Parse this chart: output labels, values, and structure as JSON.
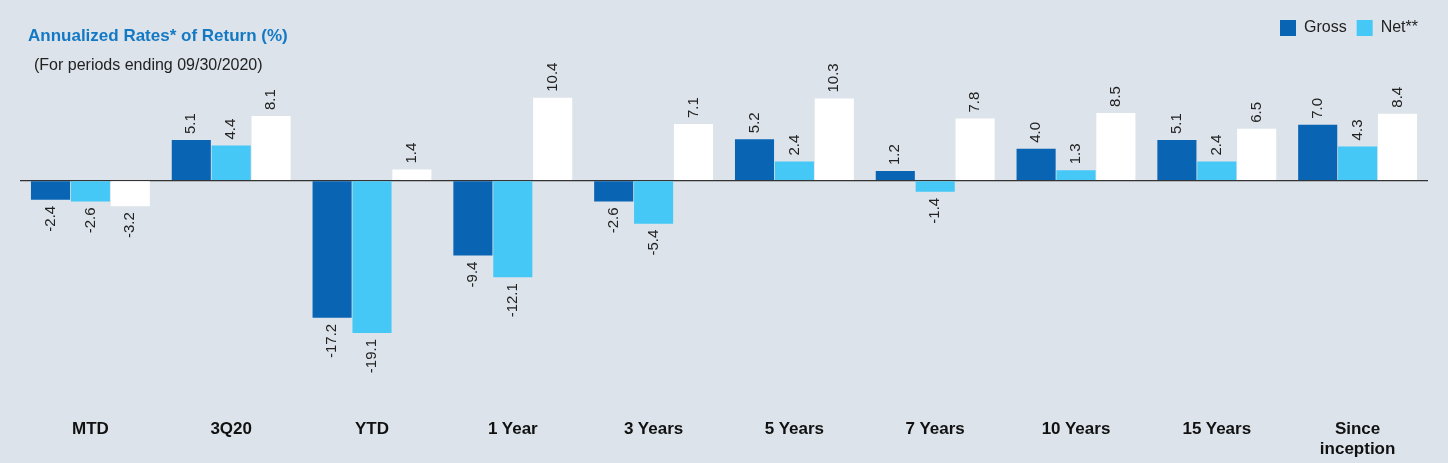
{
  "chart_data": {
    "type": "bar",
    "title": "Annualized Rates* of Return (%)",
    "subtitle": "(For periods ending 09/30/2020)",
    "categories": [
      "MTD",
      "3Q20",
      "YTD",
      "1 Year",
      "3 Years",
      "5 Years",
      "7 Years",
      "10 Years",
      "15 Years",
      "Since inception"
    ],
    "series": [
      {
        "name": "Gross",
        "color": "#0a64b4",
        "values": [
          -2.4,
          5.1,
          -17.2,
          -9.4,
          -2.6,
          5.2,
          1.2,
          4.0,
          5.1,
          7.0
        ],
        "value_labels": [
          "-2.4",
          "5.1",
          "-17.2",
          "-9.4",
          "-2.6",
          "5.2",
          "1.2",
          "4.0",
          "5.1",
          "7.0"
        ]
      },
      {
        "name": "Net**",
        "color": "#45c8f5",
        "values": [
          -2.6,
          4.4,
          -19.1,
          -12.1,
          -5.4,
          2.4,
          -1.4,
          1.3,
          2.4,
          4.3
        ],
        "value_labels": [
          "-2.6",
          "4.4",
          "-19.1",
          "-12.1",
          "-5.4",
          "2.4",
          "-1.4",
          "1.3",
          "2.4",
          "4.3"
        ]
      },
      {
        "color": "#ffffff",
        "values": [
          -3.2,
          8.1,
          1.4,
          10.4,
          7.1,
          10.3,
          7.8,
          8.5,
          6.5,
          8.4
        ],
        "value_labels": [
          "-3.2",
          "8.1",
          "1.4",
          "10.4",
          "7.1",
          "10.3",
          "7.8",
          "8.5",
          "6.5",
          "8.4"
        ]
      }
    ],
    "legend": "top right",
    "grid": false
  }
}
